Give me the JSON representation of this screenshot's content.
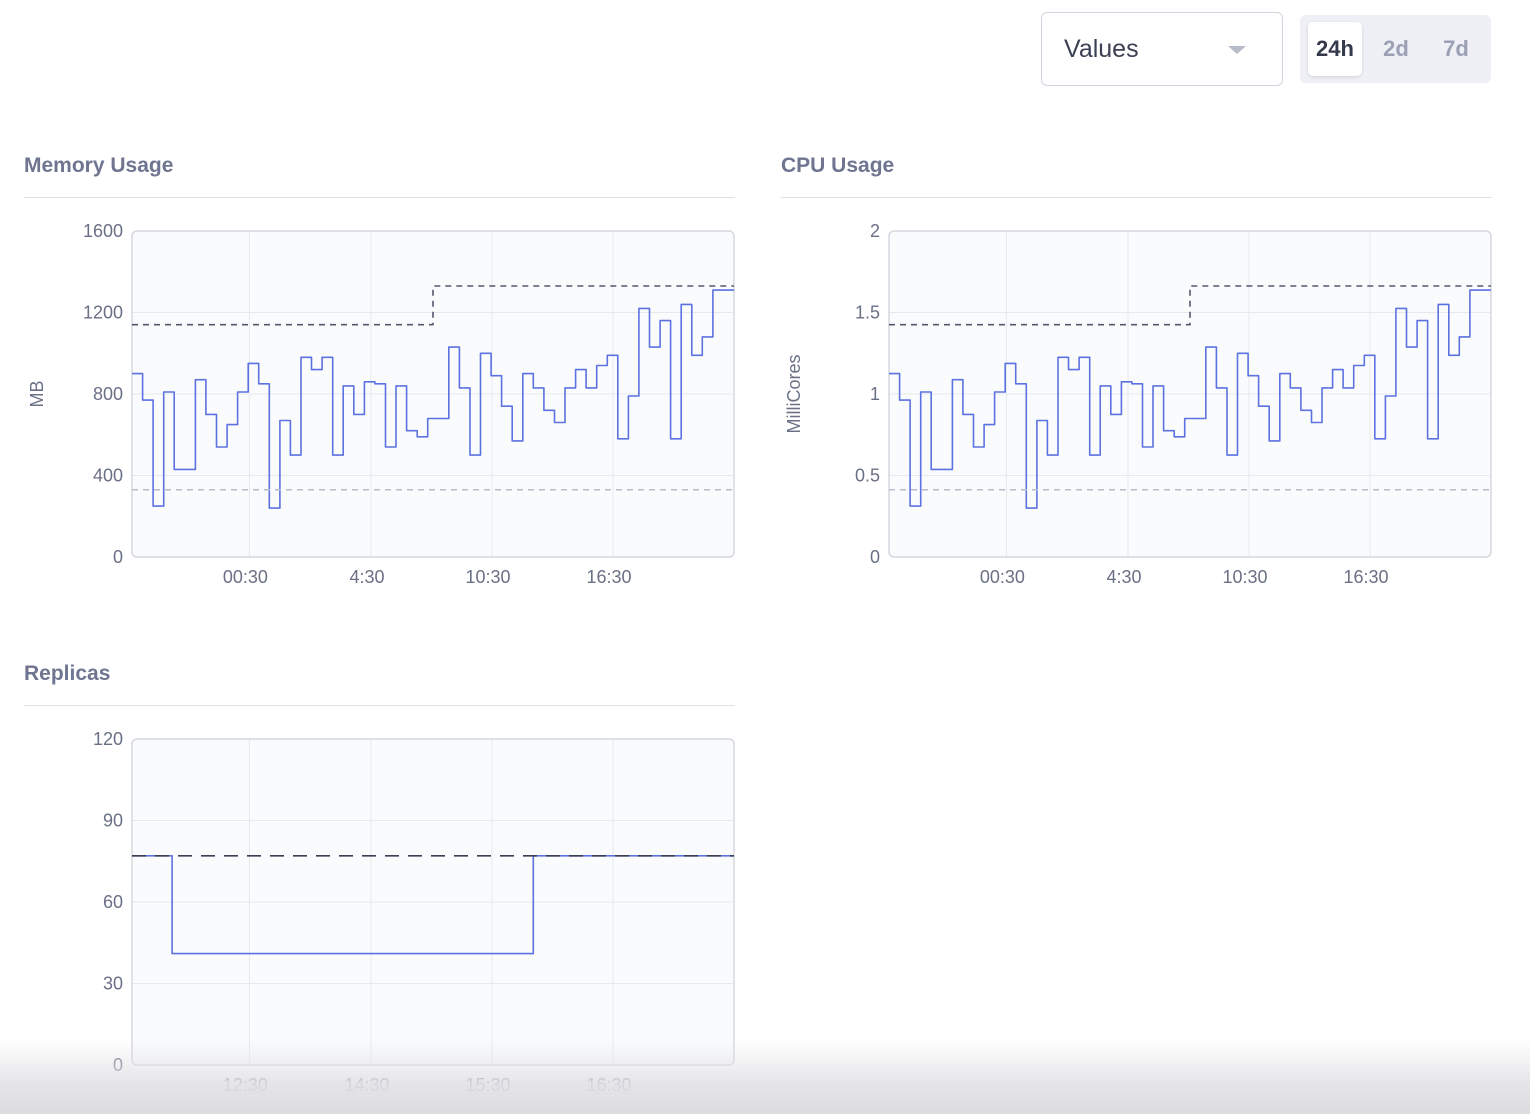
{
  "controls": {
    "metric_select": "Values",
    "ranges": [
      {
        "label": "24h",
        "active": true
      },
      {
        "label": "2d",
        "active": false
      },
      {
        "label": "7d",
        "active": false
      }
    ]
  },
  "charts": [
    {
      "id": "memory",
      "title": "Memory Usage",
      "chart_data": {
        "type": "line",
        "ylabel": "MB",
        "ylim": [
          0,
          1600
        ],
        "yticks": [
          "0",
          "400",
          "800",
          "1200",
          "1600"
        ],
        "xticks": [
          "00:30",
          "4:30",
          "10:30",
          "16:30"
        ],
        "grid": true,
        "series": [
          {
            "role": "usage",
            "values": [
              900,
              900,
              770,
              770,
              250,
              250,
              810,
              810,
              430,
              430,
              430,
              430,
              870,
              870,
              700,
              700,
              540,
              540,
              650,
              650,
              810,
              810,
              950,
              950,
              850,
              850,
              240,
              240,
              670,
              670,
              500,
              500,
              980,
              980,
              920,
              920,
              980,
              980,
              500,
              500,
              840,
              840,
              700,
              700,
              860,
              860,
              850,
              850,
              540,
              540,
              840,
              840,
              620,
              620,
              590,
              590,
              680,
              680,
              680,
              680,
              1030,
              1030,
              830,
              830,
              500,
              500,
              1000,
              1000,
              890,
              890,
              740,
              740,
              570,
              570,
              900,
              900,
              830,
              830,
              720,
              720,
              660,
              660,
              830,
              830,
              920,
              920,
              830,
              830,
              940,
              940,
              990,
              990,
              580,
              580,
              790,
              790,
              1220,
              1220,
              1030,
              1030,
              1160,
              1160,
              580,
              580,
              1240,
              1240,
              990,
              990,
              1080,
              1080,
              1310,
              1310,
              1310,
              1310
            ]
          },
          {
            "role": "limit",
            "style": "dashed",
            "values": [
              1140,
              1140,
              1140,
              1140,
              1140,
              1140,
              1140,
              1140,
              1140,
              1140,
              1140,
              1140,
              1140,
              1140,
              1140,
              1140,
              1140,
              1140,
              1140,
              1140,
              1140,
              1140,
              1140,
              1140,
              1140,
              1140,
              1140,
              1140,
              1140,
              1140,
              1140,
              1140,
              1140,
              1140,
              1140,
              1140,
              1140,
              1140,
              1140,
              1140,
              1140,
              1140,
              1140,
              1140,
              1140,
              1140,
              1140,
              1140,
              1140,
              1140,
              1140,
              1140,
              1140,
              1140,
              1140,
              1140,
              1140,
              1140,
              1140,
              1140,
              1330,
              1330,
              1330,
              1330,
              1330,
              1330,
              1330,
              1330,
              1330,
              1330,
              1330,
              1330,
              1330,
              1330,
              1330,
              1330,
              1330,
              1330,
              1330,
              1330,
              1330,
              1330,
              1330,
              1330,
              1330,
              1330,
              1330,
              1330,
              1330,
              1330,
              1330,
              1330,
              1330,
              1330,
              1330,
              1330,
              1330,
              1330,
              1330,
              1330,
              1330,
              1330,
              1330,
              1330,
              1330,
              1330,
              1330,
              1330,
              1330,
              1330,
              1330,
              1330,
              1330,
              1330,
              1330,
              1330,
              1330,
              1330,
              1330,
              1330
            ]
          },
          {
            "role": "request",
            "style": "dotted",
            "values": [
              330,
              330,
              330,
              330,
              330,
              330,
              330,
              330,
              330,
              330,
              330,
              330,
              330,
              330,
              330,
              330,
              330,
              330,
              330,
              330,
              330,
              330,
              330,
              330,
              330,
              330,
              330,
              330,
              330,
              330,
              330,
              330,
              330,
              330,
              330,
              330,
              330,
              330,
              330,
              330,
              330,
              330,
              330,
              330,
              330,
              330,
              330,
              330,
              330,
              330,
              330,
              330,
              330,
              330,
              330,
              330,
              330,
              330,
              330,
              330,
              330,
              330,
              330,
              330,
              330,
              330,
              330,
              330,
              330,
              330,
              330,
              330,
              330,
              330,
              330,
              330,
              330,
              330,
              330,
              330,
              330,
              330,
              330,
              330,
              330,
              330,
              330,
              330,
              330,
              330,
              330,
              330,
              330,
              330,
              330,
              330,
              330,
              330,
              330,
              330,
              330,
              330,
              330,
              330,
              330,
              330,
              330,
              330,
              330,
              330,
              330,
              330,
              330,
              330,
              330,
              330,
              330,
              330,
              330,
              330
            ]
          }
        ]
      }
    },
    {
      "id": "cpu",
      "title": "CPU Usage",
      "chart_data": {
        "type": "line",
        "ylabel": "MilliCores",
        "ylim": [
          0,
          2
        ],
        "yticks": [
          "0",
          "0.5",
          "1",
          "1.5",
          "2"
        ],
        "xticks": [
          "00:30",
          "4:30",
          "10:30",
          "16:30"
        ],
        "grid": true,
        "series": [
          {
            "role": "usage",
            "values": [
              1.125,
              1.125,
              0.9625,
              0.9625,
              0.3125,
              0.3125,
              1.0125,
              1.0125,
              0.5375,
              0.5375,
              0.5375,
              0.5375,
              1.0875,
              1.0875,
              0.875,
              0.875,
              0.675,
              0.675,
              0.8125,
              0.8125,
              1.0125,
              1.0125,
              1.1875,
              1.1875,
              1.0625,
              1.0625,
              0.3,
              0.3,
              0.8375,
              0.8375,
              0.625,
              0.625,
              1.225,
              1.225,
              1.15,
              1.15,
              1.225,
              1.225,
              0.625,
              0.625,
              1.05,
              1.05,
              0.875,
              0.875,
              1.075,
              1.075,
              1.0625,
              1.0625,
              0.675,
              0.675,
              1.05,
              1.05,
              0.775,
              0.775,
              0.7375,
              0.7375,
              0.85,
              0.85,
              0.85,
              0.85,
              1.2875,
              1.2875,
              1.0375,
              1.0375,
              0.625,
              0.625,
              1.25,
              1.25,
              1.1125,
              1.1125,
              0.925,
              0.925,
              0.7125,
              0.7125,
              1.125,
              1.125,
              1.0375,
              1.0375,
              0.9,
              0.9,
              0.825,
              0.825,
              1.0375,
              1.0375,
              1.15,
              1.15,
              1.0375,
              1.0375,
              1.175,
              1.175,
              1.2375,
              1.2375,
              0.725,
              0.725,
              0.9875,
              0.9875,
              1.525,
              1.525,
              1.2875,
              1.2875,
              1.45,
              1.45,
              0.725,
              0.725,
              1.55,
              1.55,
              1.2375,
              1.2375,
              1.35,
              1.35,
              1.6375,
              1.6375,
              1.6375,
              1.6375
            ]
          },
          {
            "role": "limit",
            "style": "dashed",
            "values": [
              1.425,
              1.425,
              1.425,
              1.425,
              1.425,
              1.425,
              1.425,
              1.425,
              1.425,
              1.425,
              1.425,
              1.425,
              1.425,
              1.425,
              1.425,
              1.425,
              1.425,
              1.425,
              1.425,
              1.425,
              1.425,
              1.425,
              1.425,
              1.425,
              1.425,
              1.425,
              1.425,
              1.425,
              1.425,
              1.425,
              1.425,
              1.425,
              1.425,
              1.425,
              1.425,
              1.425,
              1.425,
              1.425,
              1.425,
              1.425,
              1.425,
              1.425,
              1.425,
              1.425,
              1.425,
              1.425,
              1.425,
              1.425,
              1.425,
              1.425,
              1.425,
              1.425,
              1.425,
              1.425,
              1.425,
              1.425,
              1.425,
              1.425,
              1.425,
              1.425,
              1.6625,
              1.6625,
              1.6625,
              1.6625,
              1.6625,
              1.6625,
              1.6625,
              1.6625,
              1.6625,
              1.6625,
              1.6625,
              1.6625,
              1.6625,
              1.6625,
              1.6625,
              1.6625,
              1.6625,
              1.6625,
              1.6625,
              1.6625,
              1.6625,
              1.6625,
              1.6625,
              1.6625,
              1.6625,
              1.6625,
              1.6625,
              1.6625,
              1.6625,
              1.6625,
              1.6625,
              1.6625,
              1.6625,
              1.6625,
              1.6625,
              1.6625,
              1.6625,
              1.6625,
              1.6625,
              1.6625,
              1.6625,
              1.6625,
              1.6625,
              1.6625,
              1.6625,
              1.6625,
              1.6625,
              1.6625,
              1.6625,
              1.6625,
              1.6625,
              1.6625,
              1.6625,
              1.6625,
              1.6625,
              1.6625,
              1.6625,
              1.6625,
              1.6625,
              1.6625
            ]
          },
          {
            "role": "request",
            "style": "dotted",
            "values": [
              0.4125,
              0.4125,
              0.4125,
              0.4125,
              0.4125,
              0.4125,
              0.4125,
              0.4125,
              0.4125,
              0.4125,
              0.4125,
              0.4125,
              0.4125,
              0.4125,
              0.4125,
              0.4125,
              0.4125,
              0.4125,
              0.4125,
              0.4125,
              0.4125,
              0.4125,
              0.4125,
              0.4125,
              0.4125,
              0.4125,
              0.4125,
              0.4125,
              0.4125,
              0.4125,
              0.4125,
              0.4125,
              0.4125,
              0.4125,
              0.4125,
              0.4125,
              0.4125,
              0.4125,
              0.4125,
              0.4125,
              0.4125,
              0.4125,
              0.4125,
              0.4125,
              0.4125,
              0.4125,
              0.4125,
              0.4125,
              0.4125,
              0.4125,
              0.4125,
              0.4125,
              0.4125,
              0.4125,
              0.4125,
              0.4125,
              0.4125,
              0.4125,
              0.4125,
              0.4125,
              0.4125,
              0.4125,
              0.4125,
              0.4125,
              0.4125,
              0.4125,
              0.4125,
              0.4125,
              0.4125,
              0.4125,
              0.4125,
              0.4125,
              0.4125,
              0.4125,
              0.4125,
              0.4125,
              0.4125,
              0.4125,
              0.4125,
              0.4125,
              0.4125,
              0.4125,
              0.4125,
              0.4125,
              0.4125,
              0.4125,
              0.4125,
              0.4125,
              0.4125,
              0.4125,
              0.4125,
              0.4125,
              0.4125,
              0.4125,
              0.4125,
              0.4125,
              0.4125,
              0.4125,
              0.4125,
              0.4125,
              0.4125,
              0.4125,
              0.4125,
              0.4125,
              0.4125,
              0.4125,
              0.4125,
              0.4125,
              0.4125,
              0.4125,
              0.4125,
              0.4125,
              0.4125,
              0.4125,
              0.4125,
              0.4125,
              0.4125,
              0.4125,
              0.4125,
              0.4125
            ]
          }
        ]
      }
    },
    {
      "id": "replicas",
      "title": "Replicas",
      "chart_data": {
        "type": "line",
        "ylabel": "",
        "ylim": [
          0,
          120
        ],
        "yticks": [
          "0",
          "30",
          "60",
          "90",
          "120"
        ],
        "xticks": [
          "12:30",
          "14:30",
          "15:30",
          "16:30"
        ],
        "grid": true,
        "series": [
          {
            "role": "current",
            "values": [
              77,
              77,
              41,
              41,
              41,
              41,
              41,
              41,
              41,
              41,
              41,
              41,
              41,
              41,
              41,
              41,
              41,
              41,
              41,
              41,
              77,
              77,
              77,
              77,
              77,
              77,
              77,
              77,
              77,
              77
            ]
          },
          {
            "role": "max",
            "style": "dashed",
            "values": [
              77,
              77,
              77,
              77,
              77,
              77,
              77,
              77,
              77,
              77,
              77,
              77,
              77,
              77,
              77,
              77,
              77,
              77,
              77,
              77,
              77,
              77,
              77,
              77,
              77,
              77,
              77,
              77,
              77,
              77
            ]
          }
        ]
      }
    }
  ]
}
